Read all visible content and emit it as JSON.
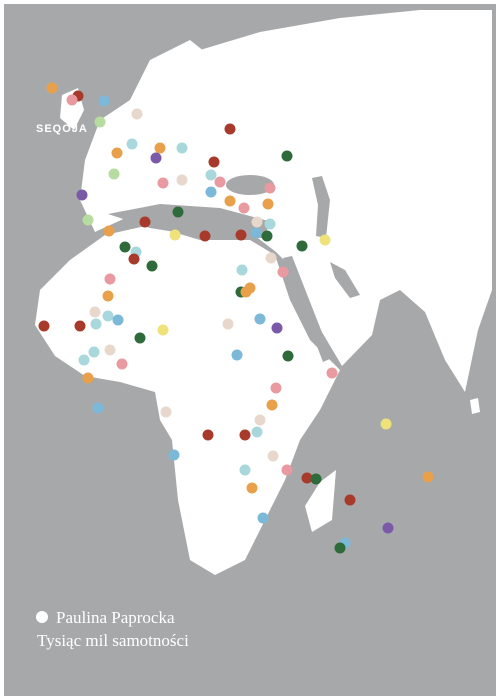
{
  "publisher": "SEQOJA",
  "author": "Paulina Paprocka",
  "title": "Tysiąc mil samotności"
}
